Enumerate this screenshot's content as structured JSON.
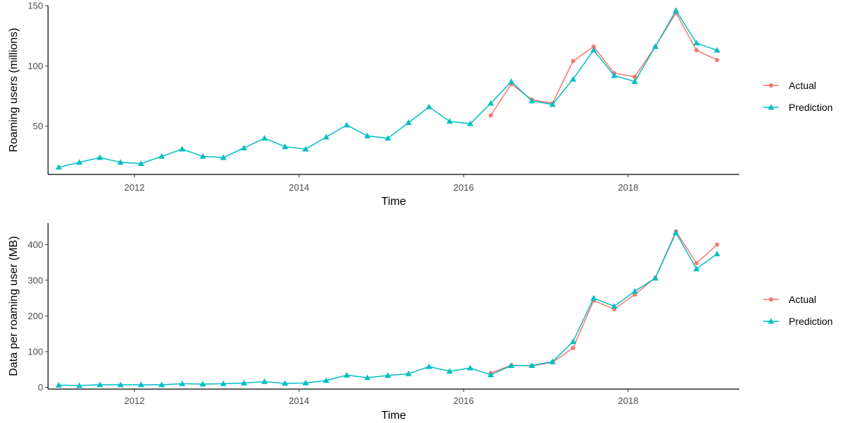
{
  "colors": {
    "actual": "#F8766D",
    "prediction": "#00BFC4",
    "axis": "#000000",
    "tick_text": "#4d4d4d"
  },
  "chart_data": [
    {
      "type": "line",
      "xlabel": "Time",
      "ylabel": "Roaming users (millions)",
      "xlim": [
        2010.95,
        2019.35
      ],
      "ylim": [
        10,
        150
      ],
      "x_ticks": [
        2012,
        2014,
        2016,
        2018
      ],
      "y_ticks": [
        50,
        100,
        150
      ],
      "grid": false,
      "legend_position": "right",
      "x": [
        2011.08,
        2011.33,
        2011.58,
        2011.83,
        2012.08,
        2012.33,
        2012.58,
        2012.83,
        2013.08,
        2013.33,
        2013.58,
        2013.83,
        2014.08,
        2014.33,
        2014.58,
        2014.83,
        2015.08,
        2015.33,
        2015.58,
        2015.83,
        2016.08,
        2016.33,
        2016.58,
        2016.83,
        2017.08,
        2017.33,
        2017.58,
        2017.83,
        2018.08,
        2018.33,
        2018.58,
        2018.83,
        2019.08
      ],
      "series": [
        {
          "name": "Actual",
          "color": "#F8766D",
          "marker": "circle",
          "values": [
            null,
            null,
            null,
            null,
            null,
            null,
            null,
            null,
            null,
            null,
            null,
            null,
            null,
            null,
            null,
            null,
            null,
            null,
            null,
            null,
            null,
            59,
            85,
            72,
            69,
            104,
            116,
            94,
            91,
            116,
            144,
            113,
            105
          ]
        },
        {
          "name": "Prediction",
          "color": "#00BFC4",
          "marker": "triangle",
          "values": [
            16,
            20,
            24,
            20,
            19,
            25,
            31,
            25,
            24,
            32,
            40,
            33,
            31,
            41,
            51,
            42,
            40,
            53,
            66,
            54,
            52,
            69,
            87,
            71,
            68,
            89,
            113,
            92,
            87,
            116,
            146,
            119,
            113
          ]
        }
      ]
    },
    {
      "type": "line",
      "xlabel": "Time",
      "ylabel": "Data per roaming user (MB)",
      "xlim": [
        2010.95,
        2019.35
      ],
      "ylim": [
        -5,
        460
      ],
      "x_ticks": [
        2012,
        2014,
        2016,
        2018
      ],
      "y_ticks": [
        0,
        100,
        200,
        300,
        400
      ],
      "grid": false,
      "legend_position": "right",
      "x": [
        2011.08,
        2011.33,
        2011.58,
        2011.83,
        2012.08,
        2012.33,
        2012.58,
        2012.83,
        2013.08,
        2013.33,
        2013.58,
        2013.83,
        2014.08,
        2014.33,
        2014.58,
        2014.83,
        2015.08,
        2015.33,
        2015.58,
        2015.83,
        2016.08,
        2016.33,
        2016.58,
        2016.83,
        2017.08,
        2017.33,
        2017.58,
        2017.83,
        2018.08,
        2018.33,
        2018.58,
        2018.83,
        2019.08
      ],
      "series": [
        {
          "name": "Actual",
          "color": "#F8766D",
          "marker": "circle",
          "values": [
            null,
            null,
            null,
            null,
            null,
            null,
            null,
            null,
            null,
            null,
            null,
            null,
            null,
            null,
            null,
            null,
            null,
            null,
            null,
            null,
            null,
            40,
            62,
            60,
            70,
            110,
            243,
            219,
            260,
            307,
            437,
            348,
            400
          ]
        },
        {
          "name": "Prediction",
          "color": "#00BFC4",
          "marker": "triangle",
          "values": [
            6,
            5,
            7,
            7,
            7,
            7,
            10,
            9,
            10,
            12,
            16,
            11,
            12,
            19,
            34,
            27,
            33,
            38,
            58,
            45,
            54,
            35,
            61,
            61,
            72,
            128,
            250,
            227,
            269,
            306,
            433,
            332,
            374
          ]
        }
      ]
    }
  ]
}
